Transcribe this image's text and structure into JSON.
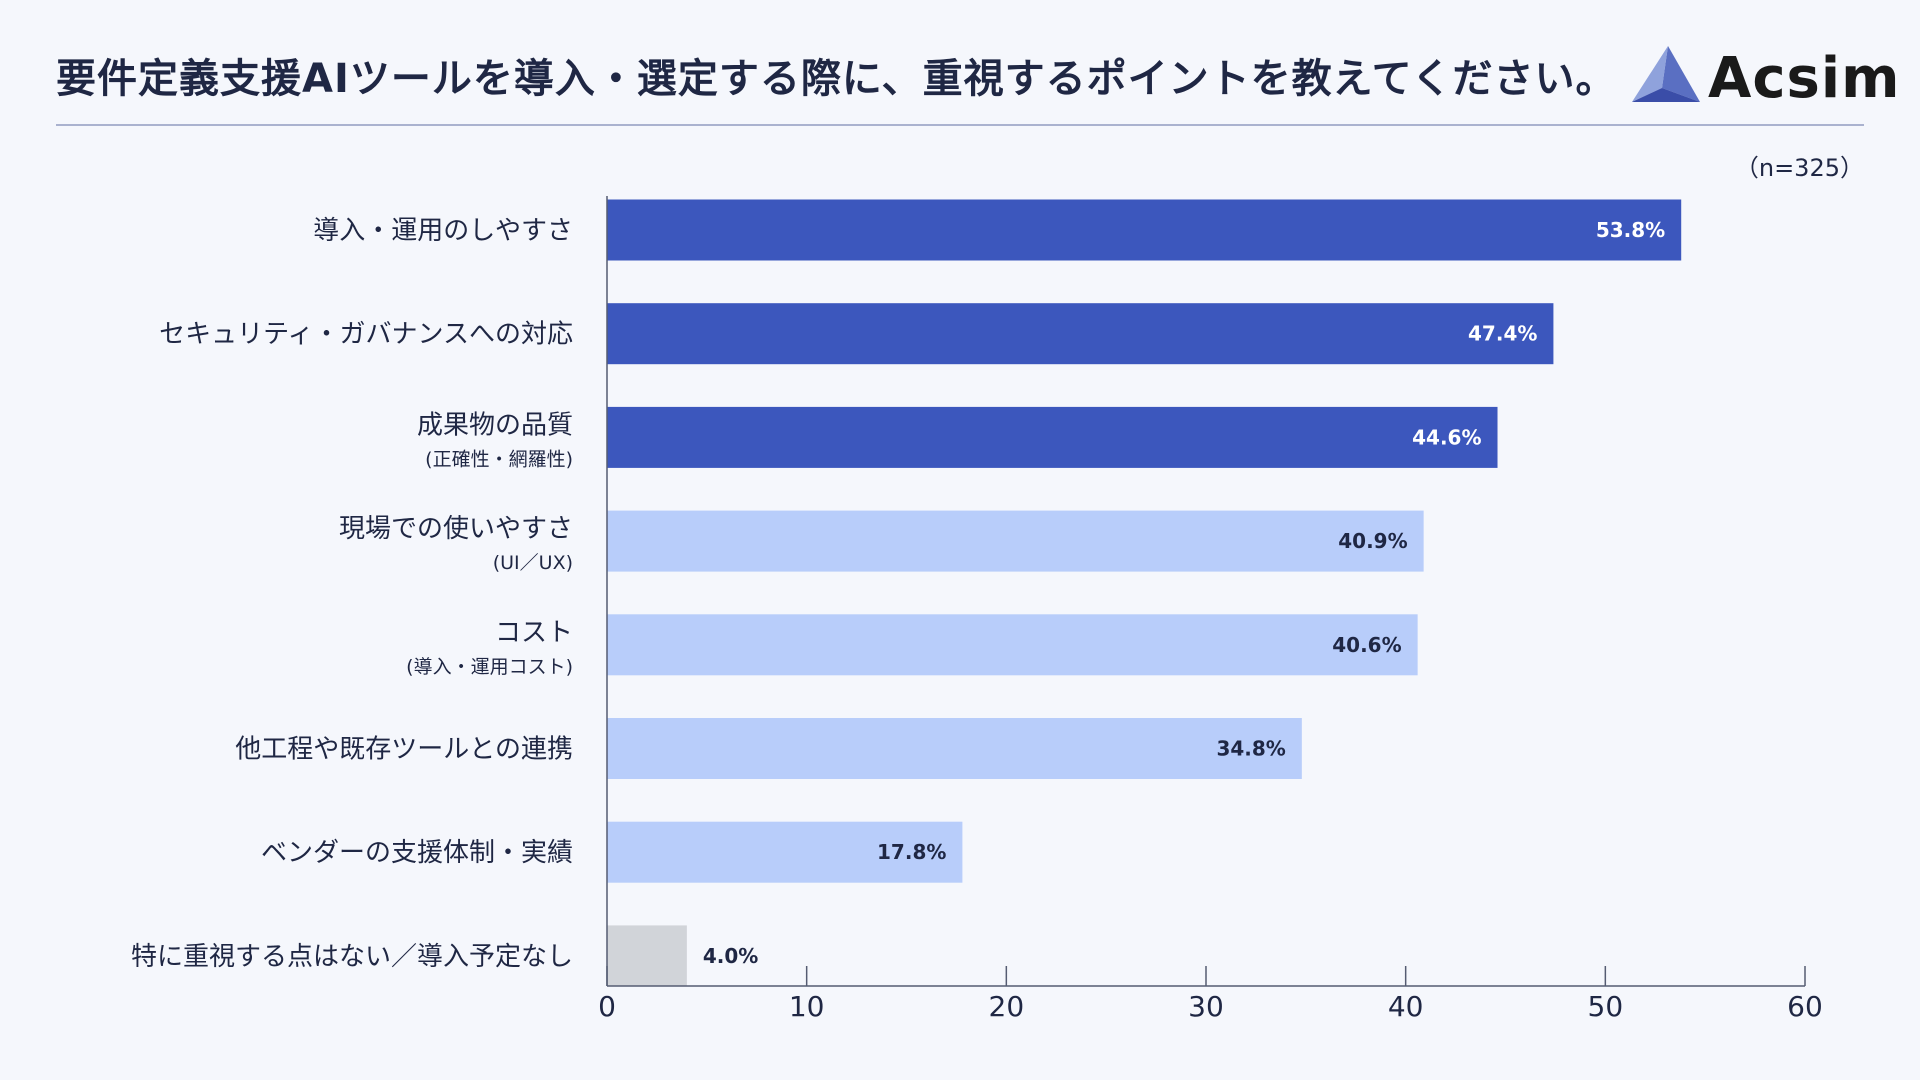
{
  "header": {
    "title": "要件定義支援AIツールを導入・選定する際に、重視するポイントを教えてください。",
    "logo_text": "Acsim",
    "sample_size": "（n=325）"
  },
  "colors": {
    "dark_bar": "#3c57bd",
    "light_bar": "#b8cdfa",
    "gray_bar": "#d1d4d9",
    "dark_value_text": "#ffffff",
    "light_value_text": "#1f2744"
  },
  "chart_data": {
    "type": "bar",
    "orientation": "horizontal",
    "title": "要件定義支援AIツールを導入・選定する際に、重視するポイントを教えてください。",
    "xlim": [
      0,
      60
    ],
    "xticks": [
      0,
      10,
      20,
      30,
      40,
      50,
      60
    ],
    "tick_labels": [
      "0",
      "10",
      "20",
      "30",
      "40",
      "50",
      "60"
    ],
    "categories": [
      {
        "label": "導入・運用のしやすさ",
        "sub": "",
        "value": 53.8,
        "value_label": "53.8%",
        "tier": "top"
      },
      {
        "label": "セキュリティ・ガバナンスへの対応",
        "sub": "",
        "value": 47.4,
        "value_label": "47.4%",
        "tier": "top"
      },
      {
        "label": "成果物の品質",
        "sub": "(正確性・網羅性)",
        "value": 44.6,
        "value_label": "44.6%",
        "tier": "top"
      },
      {
        "label": "現場での使いやすさ",
        "sub": "(UI／UX)",
        "value": 40.9,
        "value_label": "40.9%",
        "tier": "mid"
      },
      {
        "label": "コスト",
        "sub": "(導入・運用コスト)",
        "value": 40.6,
        "value_label": "40.6%",
        "tier": "mid"
      },
      {
        "label": "他工程や既存ツールとの連携",
        "sub": "",
        "value": 34.8,
        "value_label": "34.8%",
        "tier": "mid"
      },
      {
        "label": "ベンダーの支援体制・実績",
        "sub": "",
        "value": 17.8,
        "value_label": "17.8%",
        "tier": "mid"
      },
      {
        "label": "特に重視する点はない／導入予定なし",
        "sub": "",
        "value": 4.0,
        "value_label": "4.0%",
        "tier": "none"
      }
    ]
  }
}
